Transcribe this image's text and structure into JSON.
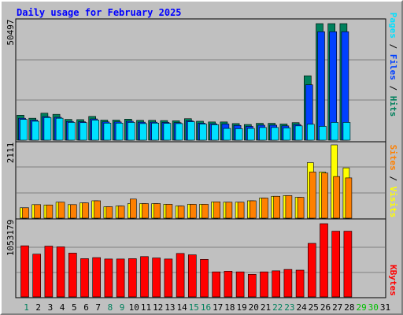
{
  "title": "Daily usage for February 2025",
  "colors": {
    "frame_bg": "#c0c0c0",
    "hits": "#00805c",
    "files": "#0040ff",
    "pages": "#00e0ff",
    "visits": "#ffff00",
    "sites": "#ff8000",
    "kbytes": "#ff0000",
    "title": "#0000ff",
    "weekend_day": "#00805c",
    "weekday": "#000000",
    "future_day": "#00c000"
  },
  "legend": {
    "top": [
      {
        "text": "Pages",
        "color": "#00e0ff"
      },
      {
        "text": " / ",
        "color": "#000000"
      },
      {
        "text": "Files",
        "color": "#0040ff"
      },
      {
        "text": " / ",
        "color": "#000000"
      },
      {
        "text": "Hits",
        "color": "#00805c"
      }
    ],
    "middle": [
      {
        "text": "Sites",
        "color": "#ff8000"
      },
      {
        "text": " / ",
        "color": "#000000"
      },
      {
        "text": "Visits",
        "color": "#ffff00"
      }
    ],
    "bottom": [
      {
        "text": "KBytes",
        "color": "#ff0000"
      }
    ]
  },
  "chart_data": [
    {
      "type": "bar",
      "panel": "hits",
      "ymax_label": "50497",
      "ylim": [
        0,
        50497
      ],
      "x": [
        1,
        2,
        3,
        4,
        5,
        6,
        7,
        8,
        9,
        10,
        11,
        12,
        13,
        14,
        15,
        16,
        17,
        18,
        19,
        20,
        21,
        22,
        23,
        24,
        25,
        26,
        27,
        28
      ],
      "series": [
        {
          "name": "Hits",
          "values": [
            10800,
            9500,
            11700,
            11200,
            9000,
            8900,
            10300,
            8700,
            8700,
            9100,
            8600,
            8600,
            8500,
            8400,
            9300,
            8200,
            7900,
            7900,
            7200,
            6800,
            7300,
            7300,
            7000,
            7600,
            27900,
            50500,
            50500,
            50500
          ]
        },
        {
          "name": "Files",
          "values": [
            9500,
            8700,
            10200,
            9900,
            8100,
            8000,
            9200,
            7900,
            7900,
            8200,
            7800,
            7800,
            7700,
            7600,
            8400,
            7400,
            7100,
            7000,
            6400,
            6000,
            6500,
            6500,
            6200,
            6800,
            24000,
            47000,
            47000,
            47000
          ]
        },
        {
          "name": "Pages",
          "values": [
            9000,
            8200,
            9800,
            9500,
            7700,
            7600,
            8700,
            7400,
            7400,
            7700,
            7200,
            7400,
            7300,
            7200,
            8000,
            7000,
            6700,
            5100,
            5000,
            5100,
            5500,
            5500,
            5300,
            6200,
            6900,
            6000,
            7700,
            7700
          ]
        }
      ]
    },
    {
      "type": "bar",
      "panel": "visits",
      "ymax_label": "2111",
      "ylim": [
        0,
        2111
      ],
      "x": [
        1,
        2,
        3,
        4,
        5,
        6,
        7,
        8,
        9,
        10,
        11,
        12,
        13,
        14,
        15,
        16,
        17,
        18,
        19,
        20,
        21,
        22,
        23,
        24,
        25,
        26,
        27,
        28
      ],
      "series": [
        {
          "name": "Visits",
          "values": [
            300,
            390,
            380,
            460,
            390,
            440,
            500,
            330,
            350,
            420,
            420,
            420,
            400,
            350,
            400,
            400,
            470,
            460,
            460,
            500,
            580,
            630,
            650,
            600,
            1600,
            1330,
            2111,
            1450
          ]
        },
        {
          "name": "Sites",
          "values": [
            300,
            390,
            380,
            460,
            390,
            440,
            500,
            330,
            350,
            550,
            420,
            420,
            400,
            350,
            400,
            400,
            470,
            460,
            460,
            500,
            580,
            630,
            650,
            600,
            1330,
            1300,
            1200,
            1160
          ]
        }
      ]
    },
    {
      "type": "bar",
      "panel": "kbytes",
      "ymax_label": "1053179",
      "ylim": [
        0,
        1053179
      ],
      "x": [
        1,
        2,
        3,
        4,
        5,
        6,
        7,
        8,
        9,
        10,
        11,
        12,
        13,
        14,
        15,
        16,
        17,
        18,
        19,
        20,
        21,
        22,
        23,
        24,
        25,
        26,
        27,
        28
      ],
      "series": [
        {
          "name": "KBytes",
          "values": [
            735000,
            615000,
            730000,
            720000,
            630000,
            550000,
            565000,
            545000,
            545000,
            550000,
            580000,
            560000,
            545000,
            625000,
            605000,
            540000,
            360000,
            370000,
            360000,
            325000,
            360000,
            375000,
            395000,
            385000,
            770000,
            1053179,
            945000,
            945000
          ]
        }
      ]
    }
  ],
  "days": [
    "1",
    "2",
    "3",
    "4",
    "5",
    "6",
    "7",
    "8",
    "9",
    "10",
    "11",
    "12",
    "13",
    "14",
    "15",
    "16",
    "17",
    "18",
    "19",
    "20",
    "21",
    "22",
    "23",
    "24",
    "25",
    "26",
    "27",
    "28",
    "29",
    "30",
    "31"
  ],
  "day_colors": [
    "#00805c",
    "#000000",
    "#000000",
    "#000000",
    "#000000",
    "#000000",
    "#000000",
    "#00805c",
    "#00805c",
    "#000000",
    "#000000",
    "#000000",
    "#000000",
    "#000000",
    "#00805c",
    "#00805c",
    "#000000",
    "#000000",
    "#000000",
    "#000000",
    "#000000",
    "#00805c",
    "#00805c",
    "#000000",
    "#000000",
    "#000000",
    "#000000",
    "#000000",
    "#00c000",
    "#00c000",
    "#000000"
  ]
}
